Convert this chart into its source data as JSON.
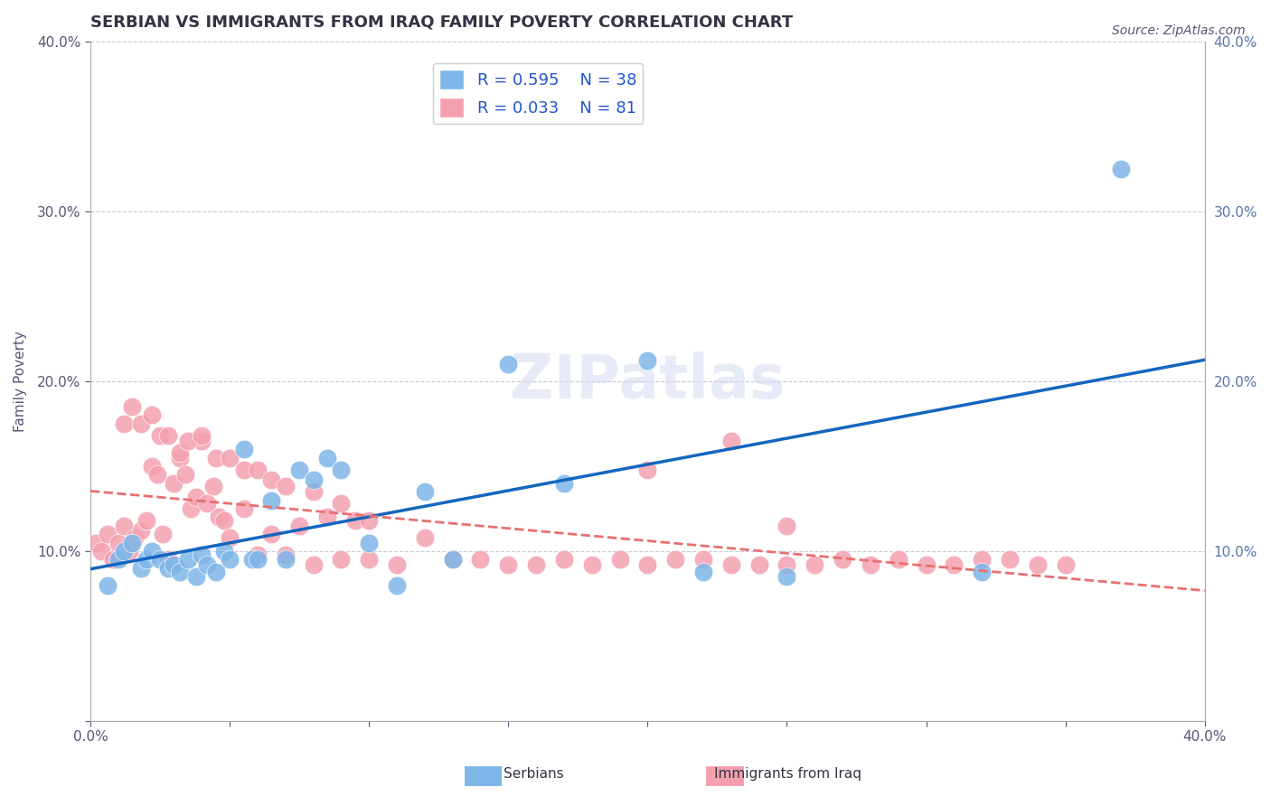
{
  "title": "SERBIAN VS IMMIGRANTS FROM IRAQ FAMILY POVERTY CORRELATION CHART",
  "source": "Source: ZipAtlas.com",
  "xlabel": "",
  "ylabel": "Family Poverty",
  "watermark": "ZIPatlas",
  "xlim": [
    0.0,
    0.4
  ],
  "ylim": [
    0.0,
    0.4
  ],
  "xticks": [
    0.0,
    0.05,
    0.1,
    0.15,
    0.2,
    0.25,
    0.3,
    0.35,
    0.4
  ],
  "yticks": [
    0.0,
    0.1,
    0.2,
    0.3,
    0.4
  ],
  "ytick_labels": [
    "",
    "10.0%",
    "20.0%",
    "30.0%",
    "40.0%"
  ],
  "xtick_labels": [
    "0.0%",
    "",
    "",
    "",
    "",
    "",
    "",
    "",
    "40.0%"
  ],
  "right_ytick_labels": [
    "",
    "10.0%",
    "20.0%",
    "30.0%",
    "40.0%"
  ],
  "legend_serbian_R": "R = 0.595",
  "legend_serbian_N": "N = 38",
  "legend_iraq_R": "R = 0.033",
  "legend_iraq_N": "N = 81",
  "serbian_color": "#7EB6E8",
  "iraq_color": "#F4A0B0",
  "serbian_line_color": "#1565C0",
  "iraq_line_color": "#E87070",
  "grid_color": "#C8C8D8",
  "background_color": "#FFFFFF",
  "serbian_x": [
    0.006,
    0.01,
    0.012,
    0.015,
    0.018,
    0.02,
    0.022,
    0.025,
    0.028,
    0.03,
    0.032,
    0.035,
    0.038,
    0.04,
    0.042,
    0.045,
    0.048,
    0.05,
    0.055,
    0.058,
    0.06,
    0.065,
    0.07,
    0.075,
    0.08,
    0.085,
    0.09,
    0.1,
    0.11,
    0.12,
    0.13,
    0.15,
    0.17,
    0.2,
    0.22,
    0.25,
    0.32,
    0.37
  ],
  "serbian_y": [
    0.08,
    0.095,
    0.1,
    0.105,
    0.09,
    0.095,
    0.1,
    0.095,
    0.09,
    0.092,
    0.088,
    0.095,
    0.085,
    0.098,
    0.092,
    0.088,
    0.1,
    0.095,
    0.16,
    0.095,
    0.095,
    0.13,
    0.095,
    0.148,
    0.142,
    0.155,
    0.148,
    0.105,
    0.08,
    0.135,
    0.095,
    0.21,
    0.14,
    0.212,
    0.088,
    0.085,
    0.088,
    0.325
  ],
  "iraq_x": [
    0.002,
    0.004,
    0.006,
    0.008,
    0.01,
    0.012,
    0.014,
    0.016,
    0.018,
    0.02,
    0.022,
    0.024,
    0.026,
    0.028,
    0.03,
    0.032,
    0.034,
    0.036,
    0.038,
    0.04,
    0.042,
    0.044,
    0.046,
    0.048,
    0.05,
    0.055,
    0.06,
    0.065,
    0.07,
    0.075,
    0.08,
    0.085,
    0.09,
    0.095,
    0.1,
    0.11,
    0.12,
    0.13,
    0.14,
    0.15,
    0.16,
    0.17,
    0.18,
    0.19,
    0.2,
    0.21,
    0.22,
    0.23,
    0.24,
    0.25,
    0.26,
    0.27,
    0.28,
    0.29,
    0.3,
    0.31,
    0.32,
    0.33,
    0.34,
    0.35,
    0.012,
    0.015,
    0.018,
    0.022,
    0.025,
    0.028,
    0.032,
    0.035,
    0.04,
    0.045,
    0.05,
    0.055,
    0.06,
    0.065,
    0.07,
    0.08,
    0.09,
    0.1,
    0.2,
    0.23,
    0.25
  ],
  "iraq_y": [
    0.105,
    0.1,
    0.11,
    0.095,
    0.105,
    0.115,
    0.1,
    0.108,
    0.112,
    0.118,
    0.15,
    0.145,
    0.11,
    0.095,
    0.14,
    0.155,
    0.145,
    0.125,
    0.132,
    0.165,
    0.128,
    0.138,
    0.12,
    0.118,
    0.108,
    0.125,
    0.098,
    0.11,
    0.098,
    0.115,
    0.092,
    0.12,
    0.095,
    0.118,
    0.095,
    0.092,
    0.108,
    0.095,
    0.095,
    0.092,
    0.092,
    0.095,
    0.092,
    0.095,
    0.092,
    0.095,
    0.095,
    0.092,
    0.092,
    0.092,
    0.092,
    0.095,
    0.092,
    0.095,
    0.092,
    0.092,
    0.095,
    0.095,
    0.092,
    0.092,
    0.175,
    0.185,
    0.175,
    0.18,
    0.168,
    0.168,
    0.158,
    0.165,
    0.168,
    0.155,
    0.155,
    0.148,
    0.148,
    0.142,
    0.138,
    0.135,
    0.128,
    0.118,
    0.148,
    0.165,
    0.115
  ],
  "title_fontsize": 13,
  "axis_label_fontsize": 11,
  "tick_fontsize": 11,
  "legend_fontsize": 13,
  "watermark_fontsize": 48,
  "watermark_color": "#D0D8F0",
  "watermark_alpha": 0.5
}
